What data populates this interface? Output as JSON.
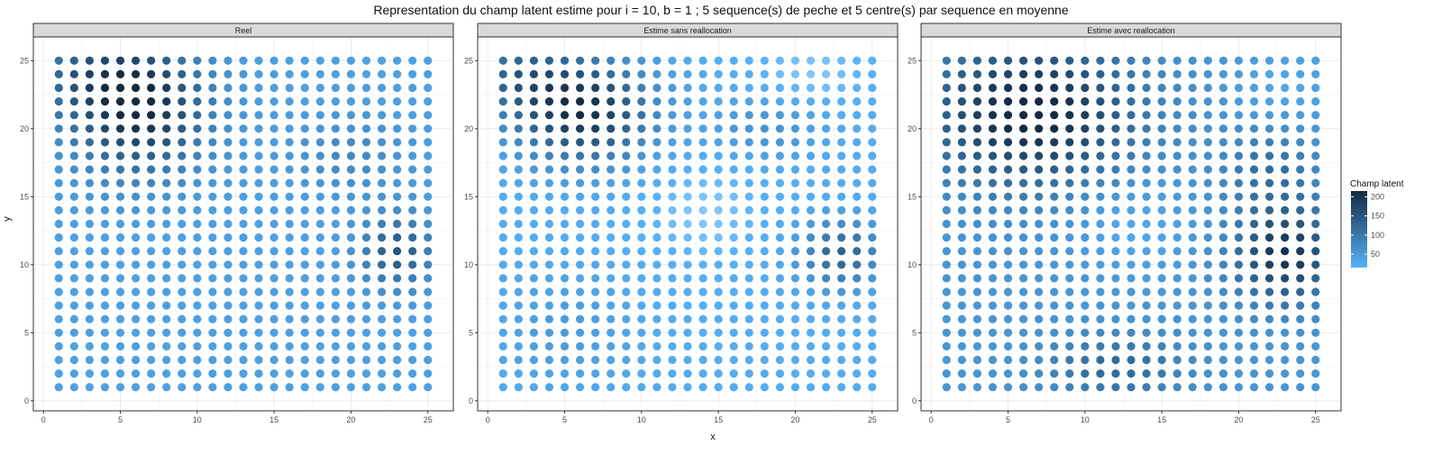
{
  "chart_data": {
    "type": "scatter",
    "title": "Representation du champ latent estime pour i = 10, b = 1 ; 5 sequence(s) de peche et 5 centre(s) par sequence en moyenne",
    "xlabel": "x",
    "ylabel": "y",
    "xlim": [
      0,
      26
    ],
    "ylim": [
      0,
      26
    ],
    "x_ticks": [
      0,
      5,
      10,
      15,
      20,
      25
    ],
    "y_ticks": [
      0,
      5,
      10,
      15,
      20,
      25
    ],
    "grid": true,
    "grid_x": [
      1,
      25
    ],
    "grid_y": [
      1,
      25
    ],
    "legend": {
      "title": "Champ latent",
      "position": "right",
      "ticks": [
        50,
        100,
        150,
        200
      ],
      "range": [
        15,
        215
      ],
      "color_low": "#56B1F7",
      "color_high": "#132B43",
      "color_very_low": "#EAF4FD"
    },
    "panels": [
      {
        "label": "Reel",
        "base_value": 40,
        "field": [
          {
            "x": 6.2,
            "y": 21.5,
            "value": 175,
            "sx": 3.0,
            "sy": 3.2
          },
          {
            "x": 3,
            "y": 24,
            "value": 70,
            "sx": 3.0,
            "sy": 2.0
          },
          {
            "x": 23,
            "y": 11,
            "value": 110,
            "sx": 1.6,
            "sy": 1.8
          },
          {
            "x": 20,
            "y": 18,
            "value": 35,
            "sx": 2.5,
            "sy": 2.0
          }
        ]
      },
      {
        "label": "Estime sans reallocation",
        "base_value": 22,
        "field": [
          {
            "x": 6.2,
            "y": 21.3,
            "value": 185,
            "sx": 3.0,
            "sy": 2.6
          },
          {
            "x": 2,
            "y": 24,
            "value": 90,
            "sx": 2.5,
            "sy": 2.0
          },
          {
            "x": 23,
            "y": 10.8,
            "value": 110,
            "sx": 1.8,
            "sy": 1.7
          },
          {
            "x": 18,
            "y": 20,
            "value": 40,
            "sx": 2.5,
            "sy": 1.5
          },
          {
            "x": 5,
            "y": 5,
            "value": 25,
            "sx": 3.0,
            "sy": 3.0
          },
          {
            "x": 14,
            "y": 14,
            "value": -15,
            "sx": 3.0,
            "sy": 3.0
          },
          {
            "x": 21,
            "y": 24,
            "value": -15,
            "sx": 3.0,
            "sy": 2.0
          }
        ]
      },
      {
        "label": "Estime avec reallocation",
        "base_value": 55,
        "field": [
          {
            "x": 6.5,
            "y": 21.2,
            "value": 175,
            "sx": 4.5,
            "sy": 3.6
          },
          {
            "x": 23,
            "y": 10.8,
            "value": 150,
            "sx": 2.2,
            "sy": 2.4
          },
          {
            "x": 12,
            "y": 2.5,
            "value": 70,
            "sx": 3.0,
            "sy": 1.6
          },
          {
            "x": 22,
            "y": 17,
            "value": 60,
            "sx": 2.0,
            "sy": 2.0
          },
          {
            "x": 13,
            "y": 13,
            "value": -30,
            "sx": 2.6,
            "sy": 2.4
          },
          {
            "x": 23,
            "y": 23,
            "value": -25,
            "sx": 2.5,
            "sy": 2.0
          }
        ]
      }
    ]
  }
}
